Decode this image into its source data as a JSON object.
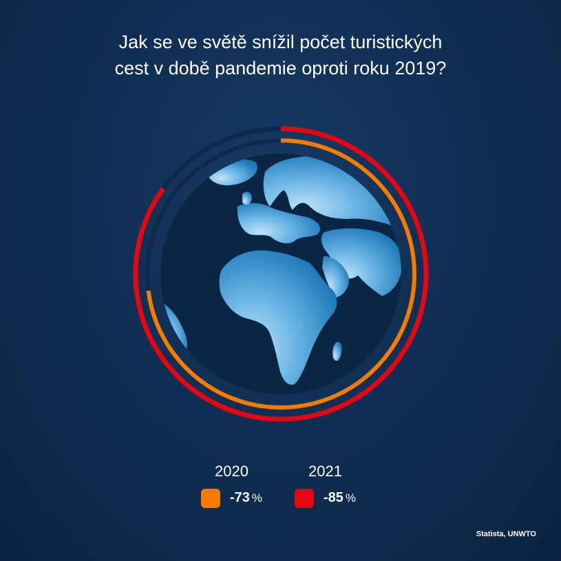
{
  "chart_data": {
    "type": "radial-bar",
    "title_lines": [
      "Jak se ve světě snížil počet turistických",
      "cest v době pandemie oproti roku 2019?"
    ],
    "unit": "%",
    "max": 100,
    "series": [
      {
        "name": "2020",
        "value": -73,
        "label": "-73",
        "color": "#f57c00"
      },
      {
        "name": "2021",
        "value": -85,
        "label": "-85",
        "color": "#e30613"
      }
    ],
    "source": "Statista, UNWTO",
    "colors": {
      "track": "#0d2a4b",
      "globe_dark": "#0b2545",
      "globe_light": "#a9d6f3",
      "globe_mid": "#2b86c5"
    }
  }
}
